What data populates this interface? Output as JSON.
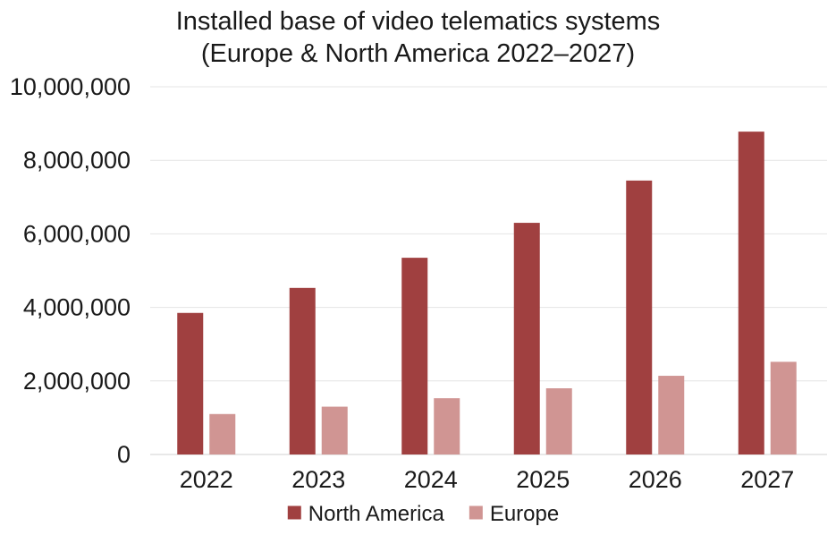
{
  "chart_data": {
    "type": "bar",
    "title_line1": "Installed base of video telematics systems",
    "title_line2": "(Europe & North America 2022–2027)",
    "xlabel": "",
    "ylabel": "",
    "categories": [
      "2022",
      "2023",
      "2024",
      "2025",
      "2026",
      "2027"
    ],
    "ylim": [
      0,
      10000000
    ],
    "y_ticks": [
      0,
      2000000,
      4000000,
      6000000,
      8000000,
      10000000
    ],
    "y_tick_labels": [
      "0",
      "2,000,000",
      "4,000,000",
      "6,000,000",
      "8,000,000",
      "10,000,000"
    ],
    "grid": true,
    "legend_position": "bottom",
    "series": [
      {
        "name": "North America",
        "color": "#a04040",
        "values": [
          3850000,
          4530000,
          5350000,
          6300000,
          7450000,
          8780000
        ]
      },
      {
        "name": "Europe",
        "color": "#d09593",
        "values": [
          1100000,
          1300000,
          1530000,
          1800000,
          2140000,
          2520000
        ]
      }
    ]
  }
}
